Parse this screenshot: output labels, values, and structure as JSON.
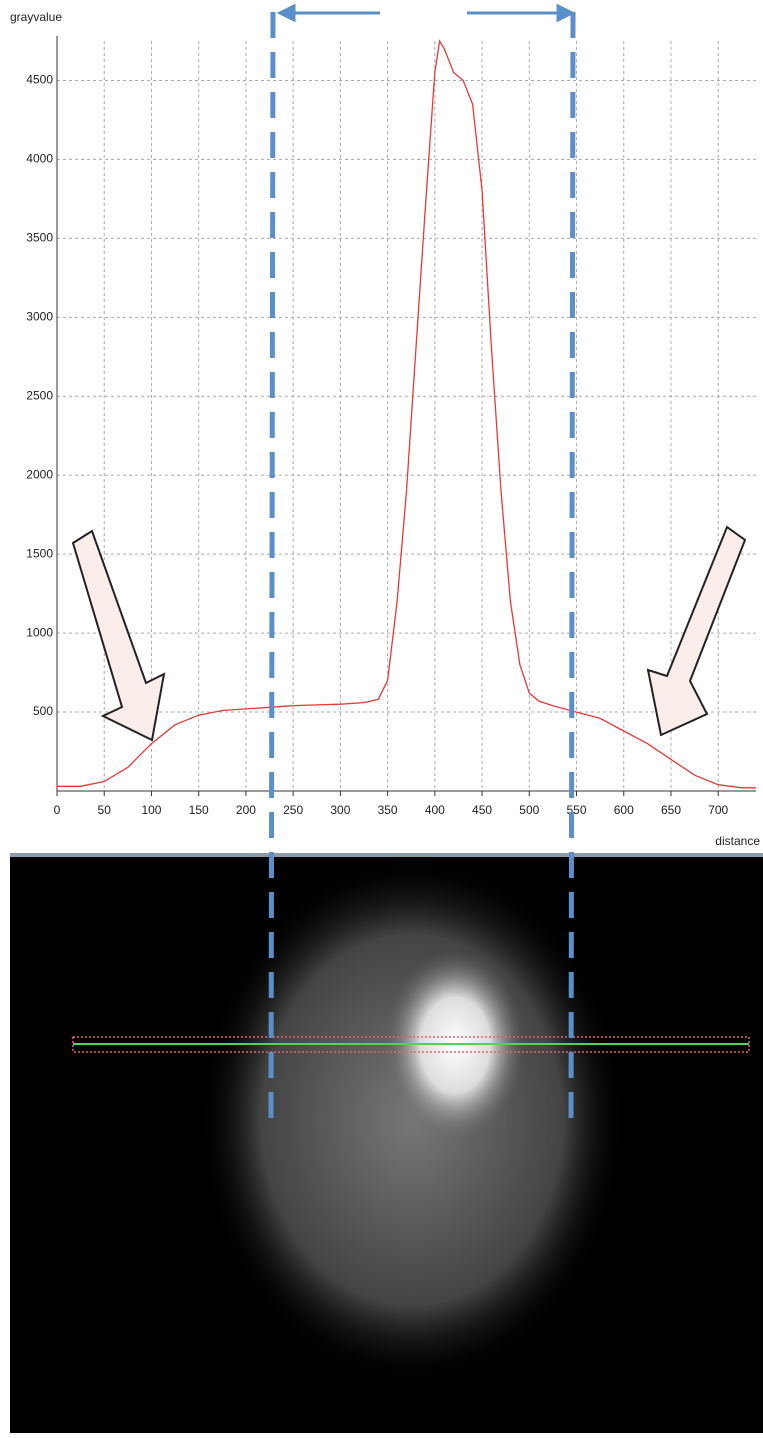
{
  "chart_data": {
    "type": "line",
    "y_label": "grayvalue",
    "x_label": "distance",
    "x": [
      0,
      25,
      50,
      75,
      100,
      125,
      150,
      175,
      200,
      225,
      250,
      275,
      300,
      325,
      340,
      350,
      360,
      370,
      380,
      390,
      400,
      405,
      410,
      420,
      430,
      440,
      450,
      460,
      470,
      480,
      490,
      500,
      510,
      525,
      550,
      575,
      600,
      625,
      650,
      675,
      700,
      725,
      740
    ],
    "values": [
      30,
      30,
      60,
      150,
      300,
      420,
      480,
      510,
      520,
      530,
      540,
      545,
      550,
      560,
      580,
      700,
      1200,
      1900,
      2800,
      3700,
      4550,
      4750,
      4700,
      4550,
      4500,
      4350,
      3800,
      2800,
      1900,
      1200,
      800,
      620,
      570,
      540,
      500,
      460,
      380,
      300,
      200,
      100,
      40,
      20,
      20
    ],
    "color": "#e8393a",
    "xlim": [
      0,
      740
    ],
    "ylim": [
      0,
      4750
    ],
    "xticks": [
      0,
      50,
      100,
      150,
      200,
      250,
      300,
      350,
      400,
      450,
      500,
      550,
      600,
      650,
      700
    ],
    "yticks": [
      500,
      1000,
      1500,
      2000,
      2500,
      3000,
      3500,
      4000,
      4500
    ],
    "grid": true
  }
}
